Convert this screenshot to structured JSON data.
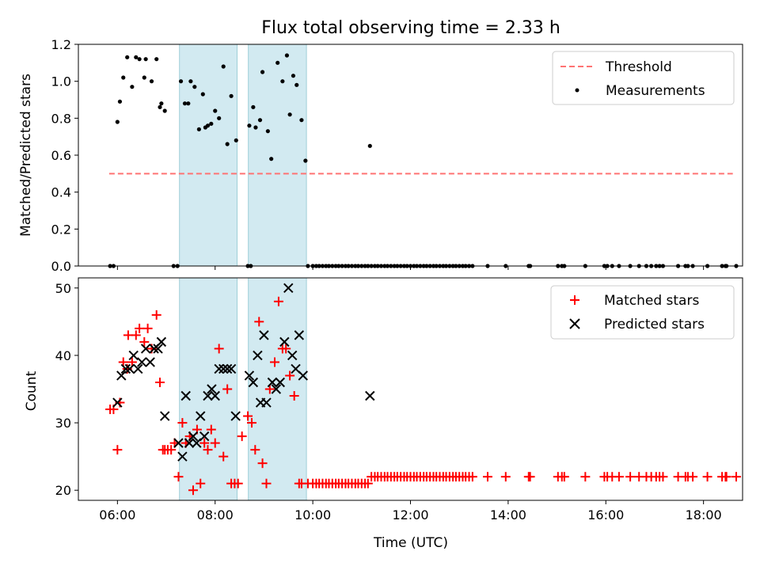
{
  "figure": {
    "title": "Flux total observing time = 2.33 h"
  },
  "colors": {
    "threshold": "#ff7373",
    "measurements": "#000000",
    "matched": "#ff0000",
    "predicted": "#000000",
    "shade": "#add8e6"
  },
  "chart_data": [
    {
      "type": "scatter",
      "panel": "top",
      "ylabel": "Matched/Predicted stars",
      "xlabel": "",
      "ylim": [
        0,
        1.2
      ],
      "yticks": [
        0,
        0.2,
        0.4,
        0.6,
        0.8,
        1.0,
        1.2
      ],
      "ytick_labels": [
        "0.0",
        "0.2",
        "0.4",
        "0.6",
        "0.8",
        "1.0",
        "1.2"
      ],
      "xlim_hours": [
        5.2,
        18.8
      ],
      "shaded_intervals_hours": [
        [
          7.27,
          8.45
        ],
        [
          8.68,
          9.87
        ]
      ],
      "legend": {
        "position": "upper right",
        "entries": [
          "Threshold",
          "Measurements"
        ]
      },
      "threshold": {
        "name": "Threshold",
        "y": 0.5,
        "x_start_hours": 5.83,
        "x_end_hours": 18.6,
        "style": "dashed"
      },
      "series": [
        {
          "name": "Measurements",
          "marker": "dot",
          "x_hours": [
            6.0,
            6.05,
            6.12,
            6.2,
            6.3,
            6.38,
            6.45,
            6.55,
            6.58,
            6.7,
            6.8,
            6.87,
            6.9,
            6.97,
            7.3,
            7.38,
            7.45,
            7.5,
            7.58,
            7.67,
            7.75,
            7.8,
            7.85,
            7.92,
            8.0,
            8.08,
            8.17,
            8.25,
            8.33,
            8.43,
            8.7,
            8.78,
            8.83,
            8.92,
            8.97,
            9.08,
            9.15,
            9.28,
            9.38,
            9.47,
            9.53,
            9.6,
            9.67,
            9.77,
            9.85,
            11.17
          ],
          "y": [
            0.78,
            0.89,
            1.02,
            1.13,
            0.97,
            1.13,
            1.12,
            1.02,
            1.12,
            1.0,
            1.12,
            0.86,
            0.88,
            0.84,
            1.0,
            0.88,
            0.88,
            1.0,
            0.97,
            0.74,
            0.93,
            0.75,
            0.76,
            0.77,
            0.84,
            0.8,
            1.08,
            0.66,
            0.92,
            0.68,
            0.76,
            0.86,
            0.75,
            0.79,
            1.05,
            0.73,
            0.58,
            1.1,
            1.0,
            1.14,
            0.82,
            1.03,
            0.98,
            0.79,
            0.57,
            0.65
          ]
        },
        {
          "name": "Measurements (zero)",
          "marker": "dot",
          "x_hours": [
            5.85,
            5.92,
            7.15,
            7.23,
            8.67,
            8.73,
            9.9,
            10.0,
            10.07,
            10.13,
            10.2,
            10.27,
            10.33,
            10.4,
            10.47,
            10.53,
            10.6,
            10.67,
            10.73,
            10.8,
            10.87,
            10.93,
            11.0,
            11.07,
            11.13,
            11.2,
            11.27,
            11.33,
            11.4,
            11.47,
            11.53,
            11.6,
            11.67,
            11.73,
            11.8,
            11.87,
            11.93,
            12.0,
            12.07,
            12.13,
            12.2,
            12.27,
            12.33,
            12.4,
            12.47,
            12.53,
            12.6,
            12.67,
            12.73,
            12.8,
            12.87,
            12.93,
            13.0,
            13.07,
            13.13,
            13.2,
            13.27,
            13.58,
            13.95,
            14.42,
            14.45,
            15.02,
            15.1,
            15.15,
            15.58,
            15.97,
            16.03,
            16.13,
            16.27,
            16.5,
            16.68,
            16.83,
            16.93,
            17.03,
            17.1,
            17.17,
            17.48,
            17.63,
            17.68,
            17.78,
            18.08,
            18.38,
            18.45,
            18.47,
            18.67
          ],
          "y_value": 0
        }
      ]
    },
    {
      "type": "scatter",
      "panel": "bottom",
      "ylabel": "Count",
      "xlabel": "Time (UTC)",
      "ylim": [
        18.5,
        51.5
      ],
      "yticks": [
        20,
        30,
        40,
        50
      ],
      "xlim_hours": [
        5.2,
        18.8
      ],
      "xticks_hours": [
        6,
        8,
        10,
        12,
        14,
        16,
        18
      ],
      "xtick_labels": [
        "06:00",
        "08:00",
        "10:00",
        "12:00",
        "14:00",
        "16:00",
        "18:00"
      ],
      "shaded_intervals_hours": [
        [
          7.27,
          8.45
        ],
        [
          8.68,
          9.87
        ]
      ],
      "legend": {
        "position": "upper right",
        "entries": [
          "Matched stars",
          "Predicted stars"
        ]
      },
      "series": [
        {
          "name": "Matched stars",
          "marker": "plus",
          "x_hours": [
            5.85,
            5.92,
            6.0,
            6.05,
            6.12,
            6.2,
            6.22,
            6.3,
            6.38,
            6.45,
            6.55,
            6.62,
            6.7,
            6.8,
            6.87,
            6.93,
            6.97,
            7.03,
            7.1,
            7.17,
            7.25,
            7.33,
            7.4,
            7.48,
            7.55,
            7.63,
            7.7,
            7.78,
            7.85,
            7.92,
            8.0,
            8.08,
            8.17,
            8.25,
            8.33,
            8.4,
            8.47,
            8.55,
            8.67,
            8.75,
            8.82,
            8.9,
            8.97,
            9.05,
            9.12,
            9.22,
            9.3,
            9.38,
            9.45,
            9.53,
            9.62,
            9.72,
            9.77
          ],
          "y": [
            32,
            32,
            26,
            33,
            39,
            38,
            43,
            39,
            43,
            44,
            42,
            44,
            41,
            46,
            36,
            26,
            26,
            26,
            26,
            27,
            22,
            30,
            27,
            28,
            20,
            29,
            21,
            27,
            26,
            29,
            27,
            41,
            25,
            35,
            21,
            21,
            21,
            28,
            31,
            30,
            26,
            45,
            24,
            21,
            35,
            39,
            48,
            41,
            41,
            37,
            34,
            21,
            21
          ],
          "tail_x_hours": [
            9.9,
            10.0,
            10.07,
            10.13,
            10.2,
            10.27,
            10.33,
            10.4,
            10.47,
            10.53,
            10.6,
            10.67,
            10.73,
            10.8,
            10.87,
            10.93,
            11.0,
            11.07,
            11.13,
            11.2,
            11.27,
            11.33,
            11.4,
            11.47,
            11.53,
            11.6,
            11.67,
            11.73,
            11.8,
            11.87,
            11.93,
            12.0,
            12.07,
            12.13,
            12.2,
            12.27,
            12.33,
            12.4,
            12.47,
            12.53,
            12.6,
            12.67,
            12.73,
            12.8,
            12.87,
            12.93,
            13.0,
            13.07,
            13.13,
            13.2,
            13.27,
            13.58,
            13.95,
            14.42,
            14.45,
            15.02,
            15.1,
            15.15,
            15.58,
            15.97,
            16.03,
            16.13,
            16.27,
            16.5,
            16.68,
            16.83,
            16.93,
            17.03,
            17.1,
            17.17,
            17.48,
            17.63,
            17.68,
            17.78,
            18.08,
            18.38,
            18.45,
            18.47,
            18.67
          ],
          "tail_y": [
            21,
            21,
            21,
            21,
            21,
            21,
            21,
            21,
            21,
            21,
            21,
            21,
            21,
            21,
            21,
            21,
            21,
            21,
            21,
            22,
            22,
            22,
            22,
            22,
            22,
            22,
            22,
            22,
            22,
            22,
            22,
            22,
            22,
            22,
            22,
            22,
            22,
            22,
            22,
            22,
            22,
            22,
            22,
            22,
            22,
            22,
            22,
            22,
            22,
            22,
            22,
            22,
            22,
            22,
            22,
            22,
            22,
            22,
            22,
            22,
            22,
            22,
            22,
            22,
            22,
            22,
            22,
            22,
            22,
            22,
            22,
            22,
            22,
            22,
            22,
            22,
            22,
            22,
            22
          ]
        },
        {
          "name": "Predicted stars",
          "marker": "x",
          "x_hours": [
            6.0,
            6.08,
            6.17,
            6.25,
            6.33,
            6.42,
            6.5,
            6.58,
            6.67,
            6.75,
            6.83,
            6.9,
            6.97,
            7.25,
            7.33,
            7.4,
            7.47,
            7.55,
            7.62,
            7.7,
            7.78,
            7.85,
            7.93,
            8.0,
            8.08,
            8.17,
            8.25,
            8.33,
            8.42,
            8.7,
            8.78,
            8.87,
            8.93,
            9.0,
            9.05,
            9.17,
            9.25,
            9.33,
            9.42,
            9.5,
            9.58,
            9.65,
            9.72,
            9.8,
            11.17
          ],
          "y": [
            33,
            37,
            38,
            38,
            40,
            38,
            39,
            41,
            39,
            41,
            41,
            42,
            31,
            27,
            25,
            34,
            27,
            28,
            27,
            31,
            28,
            34,
            35,
            34,
            38,
            38,
            38,
            38,
            31,
            37,
            36,
            40,
            33,
            43,
            33,
            36,
            35,
            36,
            42,
            50,
            40,
            38,
            43,
            37,
            34
          ]
        }
      ]
    }
  ]
}
